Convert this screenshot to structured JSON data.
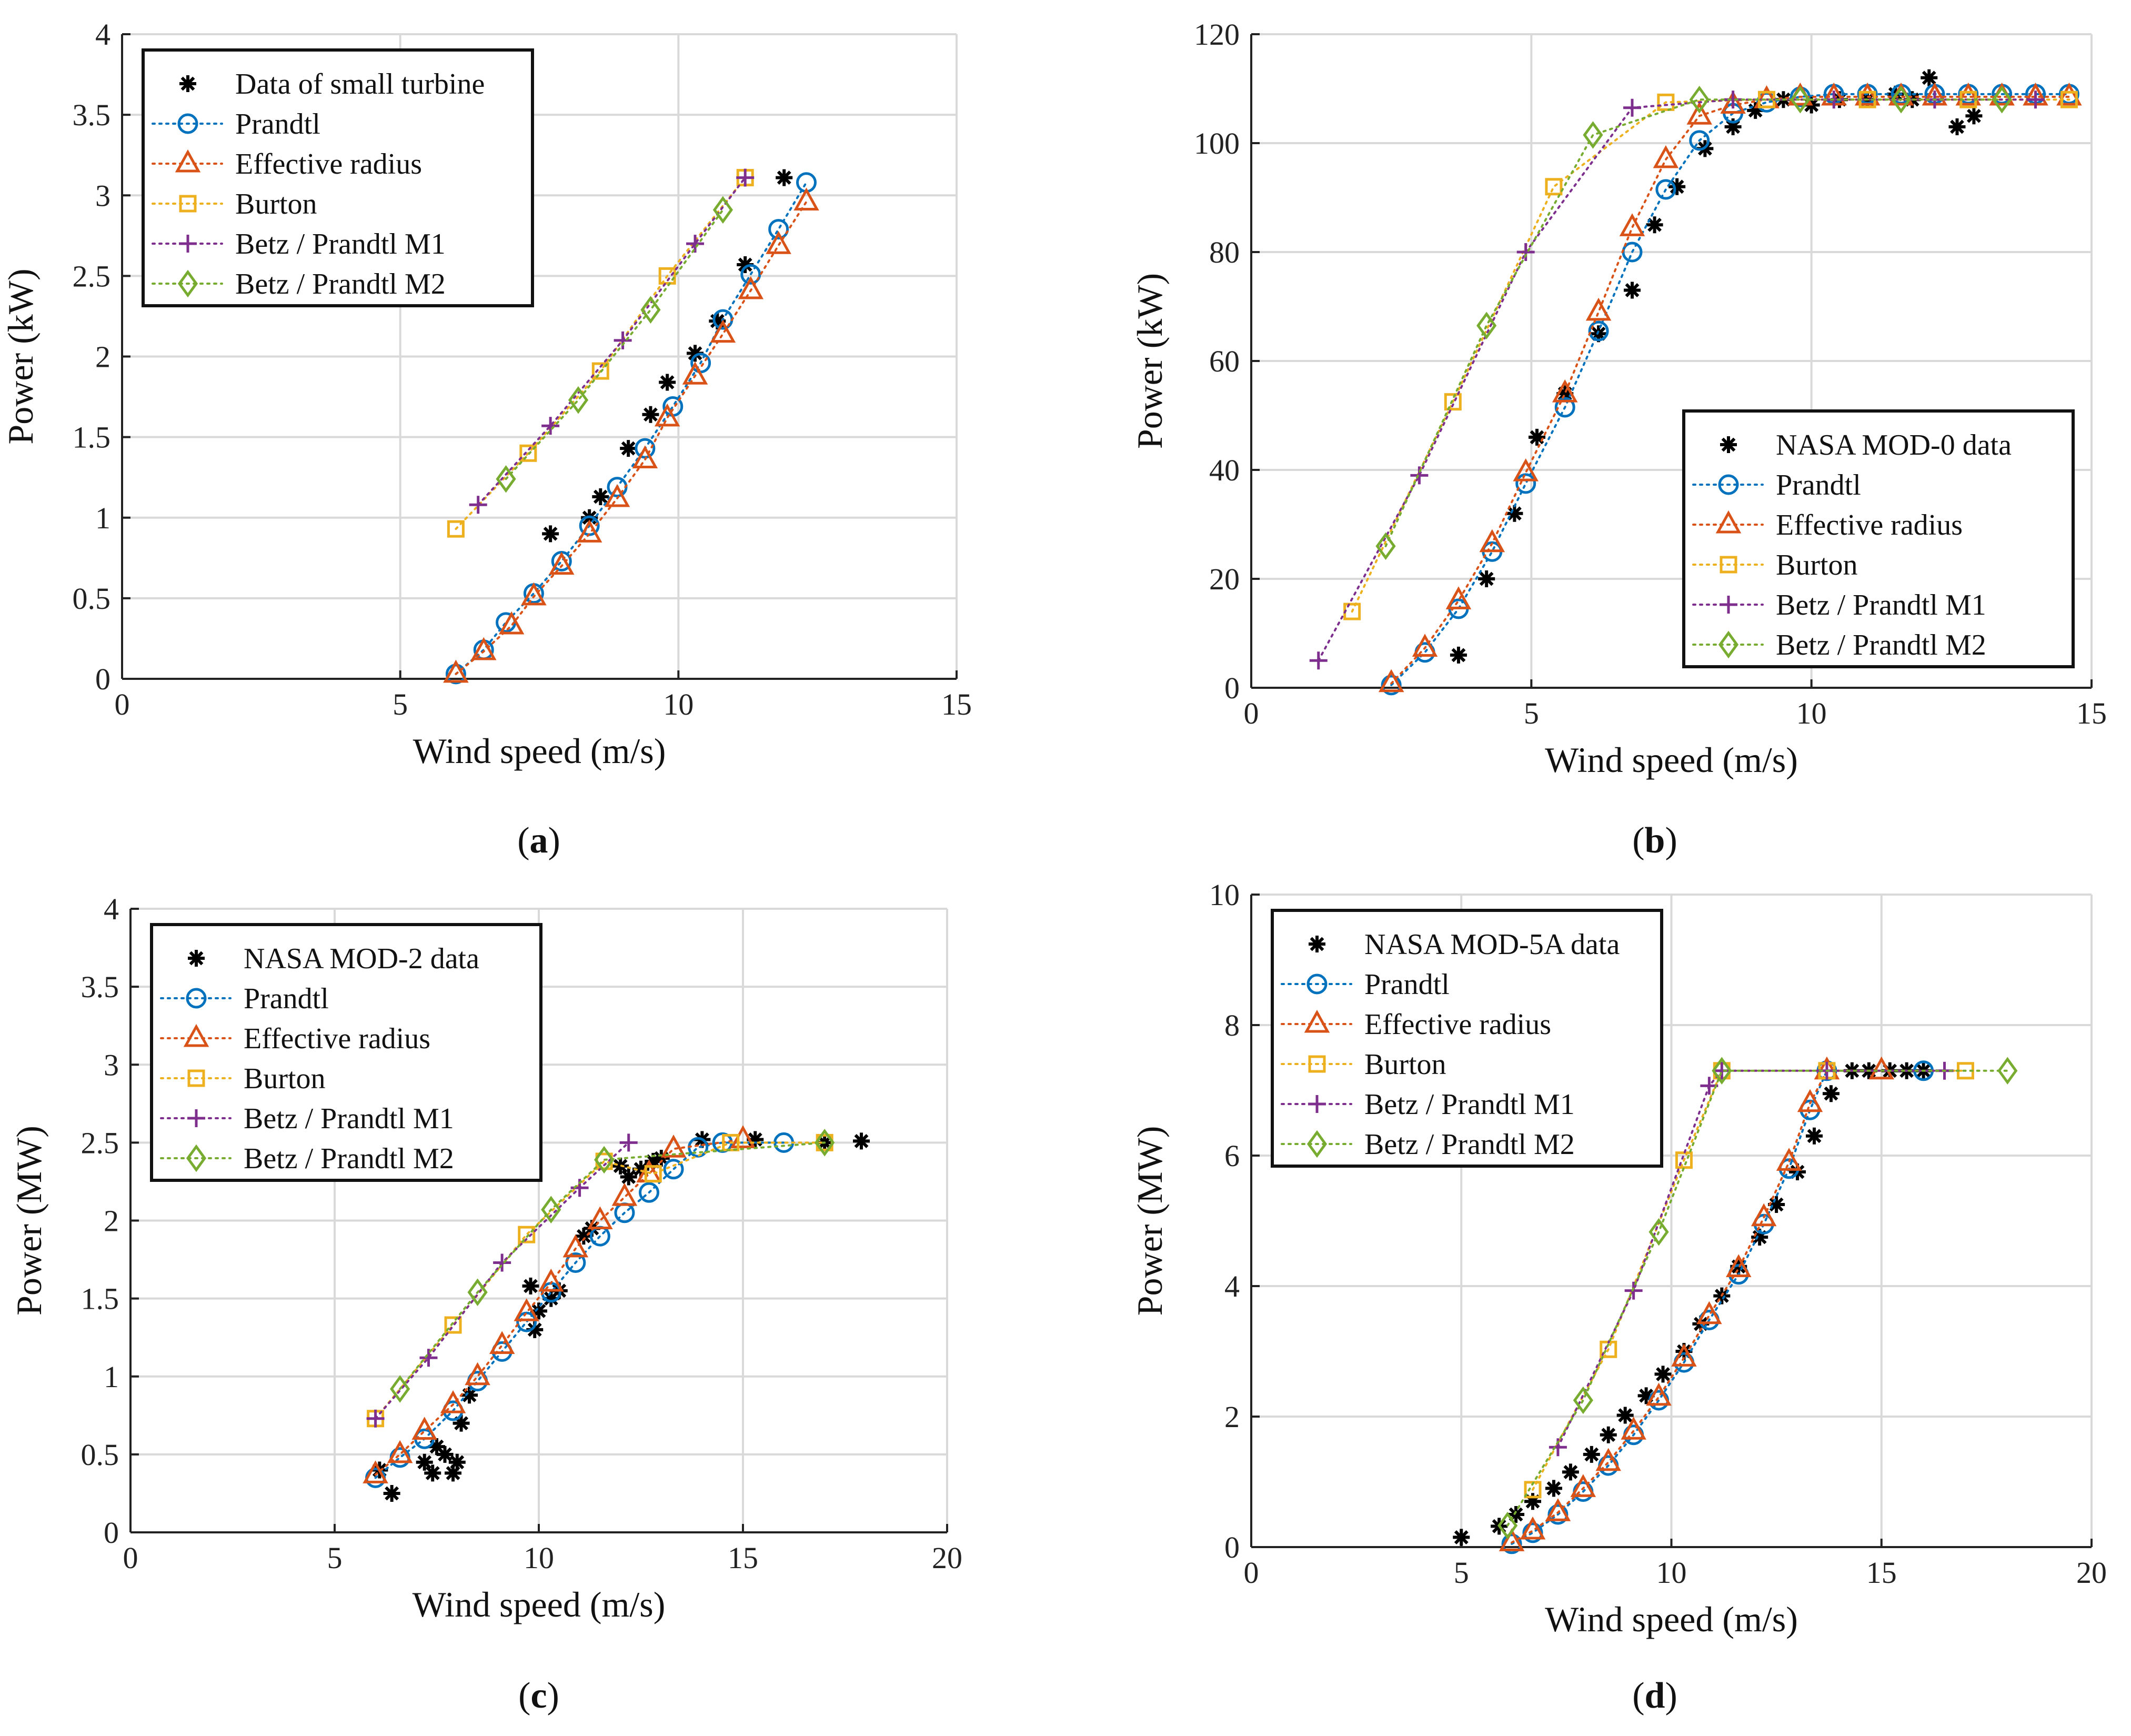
{
  "colors": {
    "data": "#000000",
    "prandtl": "#0072BD",
    "effective": "#D95319",
    "burton": "#EDB120",
    "m1": "#7E2F8E",
    "m2": "#77AC30",
    "grid": "#d9d9d9"
  },
  "chart_data": [
    {
      "id": "a",
      "type": "scatter",
      "panel_label": "a",
      "xlabel": "Wind speed (m/s)",
      "ylabel": "Power (kW)",
      "xlim": [
        0,
        15
      ],
      "ylim": [
        0,
        4
      ],
      "xticks": [
        0,
        5,
        10,
        15
      ],
      "yticks": [
        0,
        0.5,
        1,
        1.5,
        2,
        2.5,
        3,
        3.5,
        4
      ],
      "ytick_labels": [
        "0",
        "0.5",
        "1",
        "1.5",
        "2",
        "2.5",
        "3",
        "3.5",
        "4"
      ],
      "legend_position": "top-left",
      "series": [
        {
          "name": "Data of small turbine",
          "style": "data",
          "x": [
            7.7,
            8.4,
            8.6,
            9.1,
            9.5,
            9.8,
            10.3,
            10.7,
            11.2,
            11.9
          ],
          "y": [
            0.9,
            1.0,
            1.13,
            1.43,
            1.64,
            1.84,
            2.02,
            2.22,
            2.57,
            3.11
          ]
        },
        {
          "name": "Prandtl",
          "style": "prandtl",
          "x": [
            6.0,
            6.5,
            6.9,
            7.4,
            7.9,
            8.4,
            8.9,
            9.4,
            9.9,
            10.4,
            10.8,
            11.3,
            11.8,
            12.3
          ],
          "y": [
            0.03,
            0.18,
            0.35,
            0.53,
            0.73,
            0.95,
            1.19,
            1.43,
            1.69,
            1.96,
            2.23,
            2.51,
            2.79,
            3.08
          ]
        },
        {
          "name": "Effective radius",
          "style": "effective",
          "x": [
            6.0,
            6.5,
            7.0,
            7.4,
            7.9,
            8.4,
            8.9,
            9.4,
            9.8,
            10.3,
            10.8,
            11.3,
            11.8,
            12.3
          ],
          "y": [
            0.03,
            0.17,
            0.33,
            0.51,
            0.7,
            0.9,
            1.12,
            1.36,
            1.62,
            1.88,
            2.14,
            2.41,
            2.69,
            2.96
          ]
        },
        {
          "name": "Burton",
          "style": "burton",
          "x": [
            6.0,
            7.3,
            8.6,
            9.8,
            11.2
          ],
          "y": [
            0.93,
            1.4,
            1.91,
            2.5,
            3.11
          ]
        },
        {
          "name": "Betz / Prandtl M1",
          "style": "m1",
          "x": [
            6.4,
            7.7,
            9.0,
            10.3,
            11.2
          ],
          "y": [
            1.08,
            1.57,
            2.1,
            2.7,
            3.11
          ]
        },
        {
          "name": "Betz / Prandtl M2",
          "style": "m2",
          "x": [
            6.9,
            8.2,
            9.5,
            10.8
          ],
          "y": [
            1.24,
            1.73,
            2.29,
            2.91
          ]
        }
      ]
    },
    {
      "id": "b",
      "type": "scatter",
      "panel_label": "b",
      "xlabel": "Wind speed (m/s)",
      "ylabel": "Power (kW)",
      "xlim": [
        0,
        15
      ],
      "ylim": [
        0,
        120
      ],
      "xticks": [
        0,
        5,
        10,
        15
      ],
      "yticks": [
        0,
        20,
        40,
        60,
        80,
        100,
        120
      ],
      "ytick_labels": [
        "0",
        "20",
        "40",
        "60",
        "80",
        "100",
        "120"
      ],
      "legend_position": "bottom-right",
      "series": [
        {
          "name": "NASA MOD-0 data",
          "style": "data",
          "x": [
            3.7,
            4.2,
            4.7,
            5.1,
            5.6,
            6.2,
            6.8,
            7.2,
            7.6,
            8.1,
            8.6,
            9.0,
            9.5,
            10.0,
            10.5,
            11.0,
            11.5,
            11.8,
            12.1,
            12.6,
            12.9
          ],
          "y": [
            6,
            20,
            32,
            46,
            54,
            65,
            73,
            85,
            92,
            99,
            103,
            106,
            108,
            107,
            108,
            108,
            109,
            108,
            112,
            103,
            105
          ]
        },
        {
          "name": "Prandtl",
          "style": "prandtl",
          "x": [
            2.5,
            3.1,
            3.7,
            4.3,
            4.9,
            5.6,
            6.2,
            6.8,
            7.4,
            8.0,
            8.6,
            9.2,
            9.8,
            10.4,
            11.0,
            11.6,
            12.2,
            12.8,
            13.4,
            14.0,
            14.6
          ],
          "y": [
            0.5,
            6.5,
            14.5,
            25,
            37.5,
            51.5,
            65.5,
            80,
            91.5,
            100.5,
            105.5,
            107.5,
            108.5,
            109,
            109,
            109,
            109,
            109,
            109,
            109,
            109
          ]
        },
        {
          "name": "Effective radius",
          "style": "effective",
          "x": [
            2.5,
            3.1,
            3.7,
            4.3,
            4.9,
            5.6,
            6.2,
            6.8,
            7.4,
            8.0,
            8.6,
            9.2,
            9.8,
            10.4,
            11.0,
            11.6,
            12.2,
            12.8,
            13.4,
            14.0,
            14.6
          ],
          "y": [
            0.8,
            7.3,
            16,
            26.5,
            39.5,
            54,
            69,
            84.5,
            97,
            105,
            107,
            108,
            108.5,
            108.5,
            108.5,
            108.5,
            108.5,
            108.5,
            108.5,
            108.5,
            108.5
          ]
        },
        {
          "name": "Burton",
          "style": "burton",
          "x": [
            1.8,
            3.6,
            5.4,
            7.4,
            9.2,
            11.0,
            12.8,
            14.6
          ],
          "y": [
            14,
            52.5,
            92,
            107.5,
            108,
            108,
            108,
            108
          ]
        },
        {
          "name": "Betz / Prandtl M1",
          "style": "m1",
          "x": [
            1.2,
            3.0,
            4.9,
            6.8,
            8.6,
            10.4,
            12.2,
            14.0
          ],
          "y": [
            5,
            39,
            80,
            106.5,
            108,
            108,
            108,
            108
          ]
        },
        {
          "name": "Betz / Prandtl M2",
          "style": "m2",
          "x": [
            2.4,
            4.2,
            6.1,
            8.0,
            9.8,
            11.6,
            13.4
          ],
          "y": [
            26,
            66.5,
            101.5,
            108,
            108,
            108,
            108
          ]
        }
      ]
    },
    {
      "id": "c",
      "type": "scatter",
      "panel_label": "c",
      "xlabel": "Wind speed (m/s)",
      "ylabel": "Power (MW)",
      "xlim": [
        0,
        20
      ],
      "ylim": [
        0,
        4
      ],
      "xticks": [
        0,
        5,
        10,
        15,
        20
      ],
      "yticks": [
        0,
        0.5,
        1,
        1.5,
        2,
        2.5,
        3,
        3.5,
        4
      ],
      "ytick_labels": [
        "0",
        "0.5",
        "1",
        "1.5",
        "2",
        "2.5",
        "3",
        "3.5",
        "4"
      ],
      "legend_position": "top-left",
      "series": [
        {
          "name": "NASA MOD-2 data",
          "style": "data",
          "x": [
            6.1,
            6.4,
            7.2,
            7.4,
            7.5,
            7.7,
            7.9,
            8.0,
            8.1,
            8.3,
            9.8,
            9.9,
            10.0,
            10.3,
            10.5,
            11.1,
            11.3,
            12.0,
            12.2,
            12.5,
            12.8,
            13.0,
            14.0,
            15.3,
            17.0,
            17.9
          ],
          "y": [
            0.4,
            0.25,
            0.45,
            0.38,
            0.55,
            0.5,
            0.38,
            0.45,
            0.7,
            0.88,
            1.58,
            1.3,
            1.42,
            1.5,
            1.55,
            1.9,
            1.95,
            2.35,
            2.28,
            2.33,
            2.38,
            2.4,
            2.52,
            2.52,
            2.5,
            2.51
          ]
        },
        {
          "name": "Prandtl",
          "style": "prandtl",
          "x": [
            6.0,
            6.6,
            7.2,
            7.9,
            8.5,
            9.1,
            9.7,
            10.3,
            10.9,
            11.5,
            12.1,
            12.7,
            13.3,
            13.9,
            14.5,
            16.0
          ],
          "y": [
            0.35,
            0.48,
            0.6,
            0.78,
            0.97,
            1.16,
            1.35,
            1.54,
            1.73,
            1.9,
            2.05,
            2.18,
            2.33,
            2.47,
            2.5,
            2.5
          ]
        },
        {
          "name": "Effective radius",
          "style": "effective",
          "x": [
            6.0,
            6.6,
            7.2,
            7.9,
            8.5,
            9.1,
            9.7,
            10.3,
            10.9,
            11.5,
            12.1,
            12.7,
            13.3,
            15.0
          ],
          "y": [
            0.37,
            0.5,
            0.65,
            0.82,
            1.0,
            1.2,
            1.41,
            1.6,
            1.82,
            2.0,
            2.15,
            2.3,
            2.46,
            2.52
          ]
        },
        {
          "name": "Burton",
          "style": "burton",
          "x": [
            6.0,
            7.9,
            9.7,
            11.6,
            12.8,
            14.7,
            17.0
          ],
          "y": [
            0.73,
            1.33,
            1.91,
            2.38,
            2.3,
            2.5,
            2.5
          ]
        },
        {
          "name": "Betz / Prandtl M1",
          "style": "m1",
          "x": [
            6.0,
            7.3,
            9.1,
            11.0,
            12.2
          ],
          "y": [
            0.73,
            1.12,
            1.73,
            2.21,
            2.5
          ]
        },
        {
          "name": "Betz / Prandtl M2",
          "style": "m2",
          "x": [
            6.6,
            8.5,
            10.3,
            11.6,
            17.0
          ],
          "y": [
            0.92,
            1.54,
            2.07,
            2.39,
            2.5
          ]
        }
      ]
    },
    {
      "id": "d",
      "type": "scatter",
      "panel_label": "d",
      "xlabel": "Wind speed (m/s)",
      "ylabel": "Power (MW)",
      "xlim": [
        0,
        20
      ],
      "ylim": [
        0,
        10
      ],
      "xticks": [
        0,
        5,
        10,
        15,
        20
      ],
      "yticks": [
        0,
        2,
        4,
        6,
        8,
        10
      ],
      "ytick_labels": [
        "0",
        "2",
        "4",
        "6",
        "8",
        "10"
      ],
      "legend_position": "top-left",
      "series": [
        {
          "name": "NASA MOD-5A data",
          "style": "data",
          "x": [
            5.0,
            5.9,
            6.3,
            6.7,
            7.2,
            7.6,
            8.1,
            8.5,
            8.9,
            9.4,
            9.8,
            10.3,
            10.7,
            11.2,
            11.6,
            12.1,
            12.5,
            13.0,
            13.4,
            13.8,
            14.3,
            14.7,
            15.2,
            15.6,
            16.0
          ],
          "y": [
            0.15,
            0.32,
            0.5,
            0.7,
            0.9,
            1.15,
            1.42,
            1.72,
            2.02,
            2.32,
            2.65,
            3.0,
            3.42,
            3.85,
            4.3,
            4.75,
            5.25,
            5.75,
            6.3,
            6.95,
            7.3,
            7.3,
            7.3,
            7.3,
            7.3
          ]
        },
        {
          "name": "Prandtl",
          "style": "prandtl",
          "x": [
            6.2,
            6.7,
            7.3,
            7.9,
            8.5,
            9.1,
            9.7,
            10.3,
            10.9,
            11.6,
            12.2,
            12.8,
            13.3,
            13.7,
            16.0
          ],
          "y": [
            0.05,
            0.22,
            0.5,
            0.85,
            1.25,
            1.72,
            2.25,
            2.83,
            3.48,
            4.18,
            4.95,
            5.8,
            6.7,
            7.3,
            7.3
          ]
        },
        {
          "name": "Effective radius",
          "style": "effective",
          "x": [
            6.2,
            6.7,
            7.3,
            7.9,
            8.5,
            9.1,
            9.7,
            10.3,
            10.9,
            11.6,
            12.2,
            12.8,
            13.3,
            13.7,
            15.0
          ],
          "y": [
            0.07,
            0.25,
            0.53,
            0.9,
            1.3,
            1.78,
            2.3,
            2.9,
            3.55,
            4.27,
            5.05,
            5.9,
            6.8,
            7.3,
            7.3
          ]
        },
        {
          "name": "Burton",
          "style": "burton",
          "x": [
            6.7,
            8.5,
            10.3,
            11.2,
            13.7,
            17.0
          ],
          "y": [
            0.88,
            3.03,
            5.93,
            7.3,
            7.3,
            7.3
          ]
        },
        {
          "name": "Betz / Prandtl M1",
          "style": "m1",
          "x": [
            7.3,
            9.1,
            10.9,
            11.2,
            13.7,
            16.5
          ],
          "y": [
            1.53,
            3.93,
            7.07,
            7.3,
            7.3,
            7.3
          ]
        },
        {
          "name": "Betz / Prandtl M2",
          "style": "m2",
          "x": [
            6.1,
            7.9,
            9.7,
            11.2,
            18.0
          ],
          "y": [
            0.33,
            2.25,
            4.83,
            7.3,
            7.3
          ]
        }
      ]
    }
  ]
}
